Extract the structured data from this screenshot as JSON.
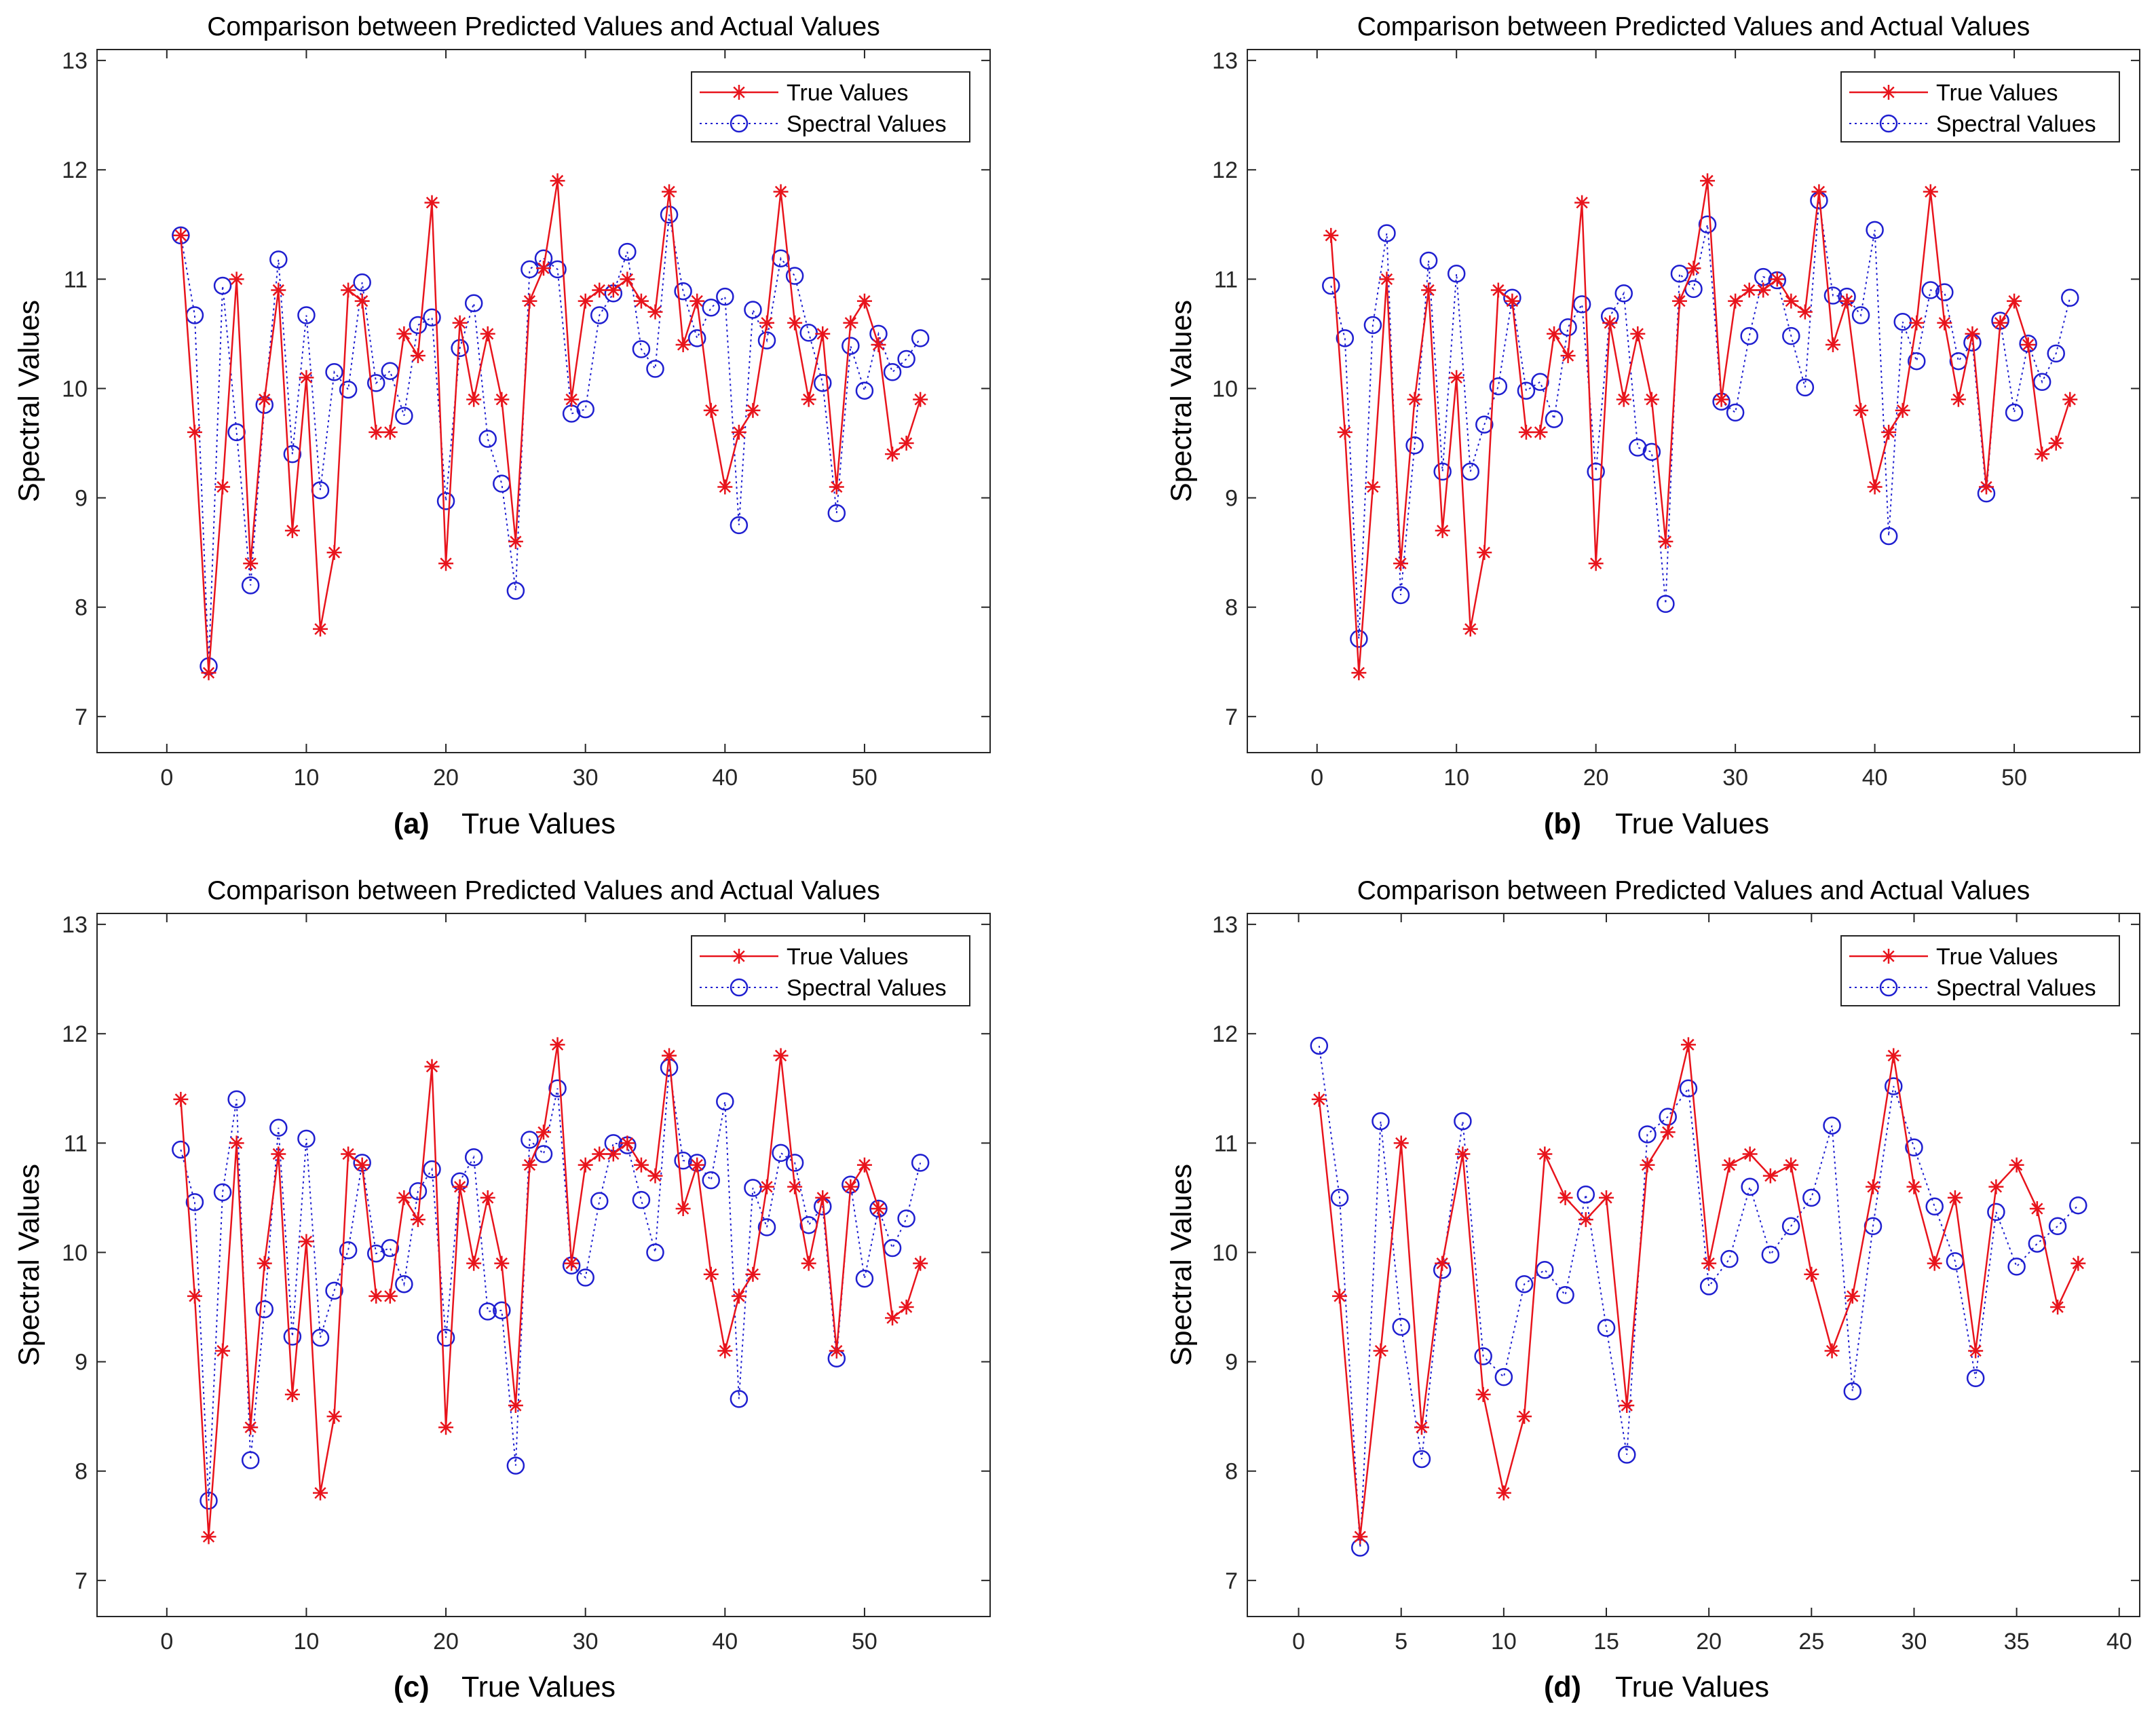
{
  "chart_data": [
    {
      "panel": "(a)",
      "type": "line",
      "title": "Comparison between Predicted Values and Actual Values",
      "xlabel": "True Values",
      "ylabel": "Spectral Values",
      "xlim": [
        -5,
        59
      ],
      "ylim": [
        6.67,
        13.1
      ],
      "xticks": [
        "0",
        "10",
        "20",
        "30",
        "40",
        "50"
      ],
      "yticks": [
        "7",
        "8",
        "9",
        "10",
        "11",
        "12",
        "13"
      ],
      "legend": [
        "True Values",
        "Spectral Values"
      ],
      "legend_position": "top-right",
      "series": [
        {
          "name": "True Values",
          "color": "#e8141c",
          "marker": "star",
          "line": "solid",
          "x": [
            1,
            2,
            3,
            4,
            5,
            6,
            7,
            8,
            9,
            10,
            11,
            12,
            13,
            14,
            15,
            16,
            17,
            18,
            19,
            20,
            21,
            22,
            23,
            24,
            25,
            26,
            27,
            28,
            29,
            30,
            31,
            32,
            33,
            34,
            35,
            36,
            37,
            38,
            39,
            40,
            41,
            42,
            43,
            44,
            45,
            46,
            47,
            48,
            49,
            50,
            51,
            52,
            53,
            54
          ],
          "values": [
            11.4,
            9.6,
            7.4,
            9.1,
            11.0,
            8.4,
            9.9,
            10.9,
            8.7,
            10.1,
            7.8,
            8.5,
            10.9,
            10.8,
            9.6,
            9.6,
            10.5,
            10.3,
            11.7,
            8.4,
            10.6,
            9.9,
            10.5,
            9.9,
            8.6,
            10.8,
            11.1,
            11.9,
            9.9,
            10.8,
            10.9,
            10.9,
            11.0,
            10.8,
            10.7,
            11.8,
            10.4,
            10.8,
            9.8,
            9.1,
            9.6,
            9.8,
            10.6,
            11.8,
            10.6,
            9.9,
            10.5,
            9.1,
            10.6,
            10.8,
            10.4,
            9.4,
            9.5,
            9.9
          ]
        },
        {
          "name": "Spectral Values",
          "color": "#1f1fd0",
          "marker": "circle",
          "line": "dotted",
          "x": [
            1,
            2,
            3,
            4,
            5,
            6,
            7,
            8,
            9,
            10,
            11,
            12,
            13,
            14,
            15,
            16,
            17,
            18,
            19,
            20,
            21,
            22,
            23,
            24,
            25,
            26,
            27,
            28,
            29,
            30,
            31,
            32,
            33,
            34,
            35,
            36,
            37,
            38,
            39,
            40,
            41,
            42,
            43,
            44,
            45,
            46,
            47,
            48,
            49,
            50,
            51,
            52,
            53,
            54
          ],
          "values": [
            11.4,
            10.67,
            7.46,
            10.94,
            9.6,
            8.2,
            9.85,
            11.18,
            9.4,
            10.67,
            9.07,
            10.15,
            9.99,
            10.97,
            10.05,
            10.16,
            9.75,
            10.58,
            10.65,
            8.97,
            10.37,
            10.78,
            9.54,
            9.13,
            8.15,
            11.09,
            11.19,
            11.09,
            9.77,
            9.81,
            10.67,
            10.87,
            11.25,
            10.36,
            10.18,
            11.59,
            10.89,
            10.46,
            10.74,
            10.84,
            8.75,
            10.72,
            10.44,
            11.19,
            11.03,
            10.51,
            10.05,
            8.86,
            10.39,
            9.98,
            10.5,
            10.15,
            10.27,
            10.46
          ]
        }
      ]
    },
    {
      "panel": "(b)",
      "type": "line",
      "title": "Comparison between Predicted Values and Actual Values",
      "xlabel": "True Values",
      "ylabel": "Spectral Values",
      "xlim": [
        -5,
        59
      ],
      "ylim": [
        6.67,
        13.1
      ],
      "xticks": [
        "0",
        "10",
        "20",
        "30",
        "40",
        "50"
      ],
      "yticks": [
        "7",
        "8",
        "9",
        "10",
        "11",
        "12",
        "13"
      ],
      "legend": [
        "True Values",
        "Spectral Values"
      ],
      "legend_position": "top-right",
      "series": [
        {
          "name": "True Values",
          "color": "#e8141c",
          "marker": "star",
          "line": "solid",
          "x": [
            1,
            2,
            3,
            4,
            5,
            6,
            7,
            8,
            9,
            10,
            11,
            12,
            13,
            14,
            15,
            16,
            17,
            18,
            19,
            20,
            21,
            22,
            23,
            24,
            25,
            26,
            27,
            28,
            29,
            30,
            31,
            32,
            33,
            34,
            35,
            36,
            37,
            38,
            39,
            40,
            41,
            42,
            43,
            44,
            45,
            46,
            47,
            48,
            49,
            50,
            51,
            52,
            53,
            54
          ],
          "values": [
            11.4,
            9.6,
            7.4,
            9.1,
            11.0,
            8.4,
            9.9,
            10.9,
            8.7,
            10.1,
            7.8,
            8.5,
            10.9,
            10.8,
            9.6,
            9.6,
            10.5,
            10.3,
            11.7,
            8.4,
            10.6,
            9.9,
            10.5,
            9.9,
            8.6,
            10.8,
            11.1,
            11.9,
            9.9,
            10.8,
            10.9,
            10.9,
            11.0,
            10.8,
            10.7,
            11.8,
            10.4,
            10.8,
            9.8,
            9.1,
            9.6,
            9.8,
            10.6,
            11.8,
            10.6,
            9.9,
            10.5,
            9.1,
            10.6,
            10.8,
            10.4,
            9.4,
            9.5,
            9.9
          ]
        },
        {
          "name": "Spectral Values",
          "color": "#1f1fd0",
          "marker": "circle",
          "line": "dotted",
          "x": [
            1,
            2,
            3,
            4,
            5,
            6,
            7,
            8,
            9,
            10,
            11,
            12,
            13,
            14,
            15,
            16,
            17,
            18,
            19,
            20,
            21,
            22,
            23,
            24,
            25,
            26,
            27,
            28,
            29,
            30,
            31,
            32,
            33,
            34,
            35,
            36,
            37,
            38,
            39,
            40,
            41,
            42,
            43,
            44,
            45,
            46,
            47,
            48,
            49,
            50,
            51,
            52,
            53,
            54
          ],
          "values": [
            10.94,
            10.46,
            7.71,
            10.58,
            11.42,
            8.11,
            9.48,
            11.17,
            9.24,
            11.05,
            9.24,
            9.67,
            10.02,
            10.83,
            9.98,
            10.06,
            9.72,
            10.56,
            10.77,
            9.24,
            10.66,
            10.87,
            9.46,
            9.42,
            8.03,
            11.05,
            10.91,
            11.5,
            9.88,
            9.78,
            10.48,
            11.02,
            10.99,
            10.48,
            10.01,
            11.72,
            10.85,
            10.84,
            10.67,
            11.45,
            8.65,
            10.61,
            10.25,
            10.9,
            10.88,
            10.25,
            10.42,
            9.04,
            10.62,
            9.78,
            10.41,
            10.06,
            10.32,
            10.83
          ]
        }
      ]
    },
    {
      "panel": "(c)",
      "type": "line",
      "title": "Comparison between Predicted Values and Actual Values",
      "xlabel": "True Values",
      "ylabel": "Spectral Values",
      "xlim": [
        -5,
        59
      ],
      "ylim": [
        6.67,
        13.1
      ],
      "xticks": [
        "0",
        "10",
        "20",
        "30",
        "40",
        "50"
      ],
      "yticks": [
        "7",
        "8",
        "9",
        "10",
        "11",
        "12",
        "13"
      ],
      "legend": [
        "True Values",
        "Spectral Values"
      ],
      "legend_position": "top-right",
      "series": [
        {
          "name": "True Values",
          "color": "#e8141c",
          "marker": "star",
          "line": "solid",
          "x": [
            1,
            2,
            3,
            4,
            5,
            6,
            7,
            8,
            9,
            10,
            11,
            12,
            13,
            14,
            15,
            16,
            17,
            18,
            19,
            20,
            21,
            22,
            23,
            24,
            25,
            26,
            27,
            28,
            29,
            30,
            31,
            32,
            33,
            34,
            35,
            36,
            37,
            38,
            39,
            40,
            41,
            42,
            43,
            44,
            45,
            46,
            47,
            48,
            49,
            50,
            51,
            52,
            53,
            54
          ],
          "values": [
            11.4,
            9.6,
            7.4,
            9.1,
            11.0,
            8.4,
            9.9,
            10.9,
            8.7,
            10.1,
            7.8,
            8.5,
            10.9,
            10.8,
            9.6,
            9.6,
            10.5,
            10.3,
            11.7,
            8.4,
            10.6,
            9.9,
            10.5,
            9.9,
            8.6,
            10.8,
            11.1,
            11.9,
            9.9,
            10.8,
            10.9,
            10.9,
            11.0,
            10.8,
            10.7,
            11.8,
            10.4,
            10.8,
            9.8,
            9.1,
            9.6,
            9.8,
            10.6,
            11.8,
            10.6,
            9.9,
            10.5,
            9.1,
            10.6,
            10.8,
            10.4,
            9.4,
            9.5,
            9.9
          ]
        },
        {
          "name": "Spectral Values",
          "color": "#1f1fd0",
          "marker": "circle",
          "line": "dotted",
          "x": [
            1,
            2,
            3,
            4,
            5,
            6,
            7,
            8,
            9,
            10,
            11,
            12,
            13,
            14,
            15,
            16,
            17,
            18,
            19,
            20,
            21,
            22,
            23,
            24,
            25,
            26,
            27,
            28,
            29,
            30,
            31,
            32,
            33,
            34,
            35,
            36,
            37,
            38,
            39,
            40,
            41,
            42,
            43,
            44,
            45,
            46,
            47,
            48,
            49,
            50,
            51,
            52,
            53,
            54
          ],
          "values": [
            10.94,
            10.46,
            7.73,
            10.55,
            11.4,
            8.1,
            9.48,
            11.14,
            9.23,
            11.04,
            9.22,
            9.65,
            10.02,
            10.82,
            9.99,
            10.04,
            9.71,
            10.56,
            10.76,
            9.22,
            10.65,
            10.87,
            9.46,
            9.47,
            8.05,
            11.03,
            10.9,
            11.5,
            9.88,
            9.77,
            10.47,
            11.0,
            10.98,
            10.48,
            10.0,
            11.69,
            10.84,
            10.82,
            10.66,
            11.38,
            8.66,
            10.59,
            10.23,
            10.91,
            10.82,
            10.25,
            10.42,
            9.03,
            10.62,
            9.76,
            10.4,
            10.04,
            10.31,
            10.82
          ]
        }
      ]
    },
    {
      "panel": "(d)",
      "type": "line",
      "title": "Comparison between Predicted Values and Actual Values",
      "xlabel": "True Values",
      "ylabel": "Spectral Values",
      "xlim": [
        -2.5,
        41
      ],
      "ylim": [
        6.67,
        13.1
      ],
      "xticks": [
        "0",
        "5",
        "10",
        "15",
        "20",
        "25",
        "30",
        "35",
        "40"
      ],
      "yticks": [
        "7",
        "8",
        "9",
        "10",
        "11",
        "12",
        "13"
      ],
      "legend": [
        "True Values",
        "Spectral Values"
      ],
      "legend_position": "top-right",
      "series": [
        {
          "name": "True Values",
          "color": "#e8141c",
          "marker": "star",
          "line": "solid",
          "x": [
            1,
            2,
            3,
            4,
            5,
            6,
            7,
            8,
            9,
            10,
            11,
            12,
            13,
            14,
            15,
            16,
            17,
            18,
            19,
            20,
            21,
            22,
            23,
            24,
            25,
            26,
            27,
            28,
            29,
            30,
            31,
            32,
            33,
            34,
            35,
            36,
            37,
            38
          ],
          "values": [
            11.4,
            9.6,
            7.4,
            9.1,
            11.0,
            8.4,
            9.9,
            10.9,
            8.7,
            7.8,
            8.5,
            10.9,
            10.5,
            10.3,
            10.5,
            8.6,
            10.8,
            11.1,
            11.9,
            9.9,
            10.8,
            10.9,
            10.7,
            10.8,
            9.8,
            9.1,
            9.6,
            10.6,
            11.8,
            10.6,
            9.9,
            10.5,
            9.1,
            10.6,
            10.8,
            10.4,
            9.5,
            9.9
          ]
        },
        {
          "name": "Spectral Values",
          "color": "#1f1fd0",
          "marker": "circle",
          "line": "dotted",
          "x": [
            1,
            2,
            3,
            4,
            5,
            6,
            7,
            8,
            9,
            10,
            11,
            12,
            13,
            14,
            15,
            16,
            17,
            18,
            19,
            20,
            21,
            22,
            23,
            24,
            25,
            26,
            27,
            28,
            29,
            30,
            31,
            32,
            33,
            34,
            35,
            36,
            37,
            38
          ],
          "values": [
            11.89,
            10.5,
            7.3,
            11.2,
            9.32,
            8.11,
            9.84,
            11.2,
            9.05,
            8.86,
            9.71,
            9.84,
            9.61,
            10.53,
            9.31,
            8.15,
            11.08,
            11.24,
            11.5,
            9.69,
            9.94,
            10.6,
            9.98,
            10.24,
            10.5,
            11.16,
            8.73,
            10.24,
            11.52,
            10.96,
            10.42,
            9.92,
            8.85,
            10.37,
            9.87,
            10.08,
            10.24,
            10.43
          ]
        }
      ]
    }
  ]
}
